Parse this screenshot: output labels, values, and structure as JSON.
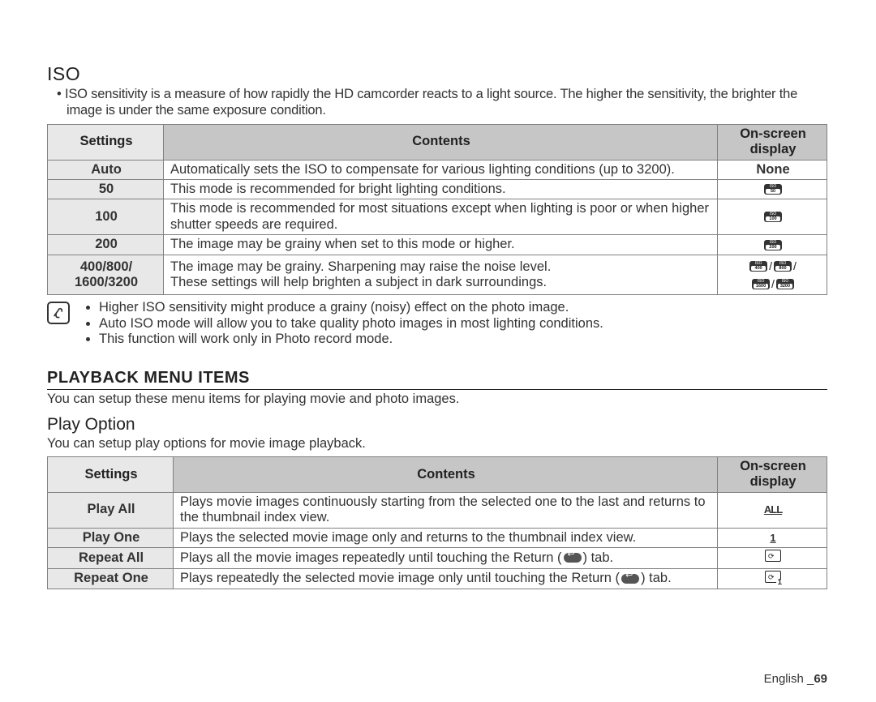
{
  "iso": {
    "title": "ISO",
    "intro": "ISO sensitivity is a measure of how rapidly the HD camcorder reacts to a light source. The higher the sensitivity, the brighter the image is under the same exposure condition.",
    "headers": {
      "settings": "Settings",
      "contents": "Contents",
      "osd_l1": "On-screen",
      "osd_l2": "display"
    },
    "rows": [
      {
        "setting": "Auto",
        "content": "Automatically sets the ISO to compensate for various lighting conditions (up to 3200).",
        "osd_type": "text",
        "osd_text": "None"
      },
      {
        "setting": "50",
        "content": "This mode is recommended for bright lighting conditions.",
        "osd_type": "icon",
        "osd_icons": [
          "50"
        ]
      },
      {
        "setting": "100",
        "content": "This mode is recommended for most situations except when lighting is poor or when higher shutter speeds are required.",
        "osd_type": "icon",
        "osd_icons": [
          "100"
        ]
      },
      {
        "setting": "200",
        "content": "The image may be grainy when set to this mode or higher.",
        "osd_type": "icon",
        "osd_icons": [
          "200"
        ]
      },
      {
        "setting_l1": "400/800/",
        "setting_l2": "1600/3200",
        "content": "The image may be grainy. Sharpening may raise the noise level.\nThese settings will help brighten a subject in dark surroundings.",
        "osd_type": "icon4",
        "osd_icons": [
          "400",
          "800",
          "1600",
          "3200"
        ]
      }
    ],
    "notes": [
      "Higher ISO sensitivity might produce a grainy (noisy) effect on the photo image.",
      "Auto ISO mode will allow you to take quality photo images in most lighting conditions.",
      "This function will work only in Photo record mode."
    ]
  },
  "playback": {
    "title": "PLAYBACK MENU ITEMS",
    "desc": "You can setup these menu items for playing movie and photo images.",
    "playoption": {
      "title": "Play Option",
      "desc": "You can setup play options for movie image playback.",
      "headers": {
        "settings": "Settings",
        "contents": "Contents",
        "osd_l1": "On-screen",
        "osd_l2": "display"
      },
      "rows": [
        {
          "setting": "Play All",
          "pre": "Plays movie images continuously starting from the selected one to the last and returns to the thumbnail index view.",
          "has_return": false,
          "post": "",
          "osd": "all"
        },
        {
          "setting": "Play One",
          "pre": "Plays the selected movie image only and returns to the thumbnail index view.",
          "has_return": false,
          "post": "",
          "osd": "one"
        },
        {
          "setting": "Repeat All",
          "pre": "Plays all the movie images repeatedly until touching the Return (",
          "has_return": true,
          "post": ") tab.",
          "osd": "repall"
        },
        {
          "setting": "Repeat One",
          "pre": "Plays repeatedly the selected movie image only until touching the Return (",
          "has_return": true,
          "post": ") tab.",
          "osd": "repone"
        }
      ]
    }
  },
  "footer": {
    "lang": "English",
    "sep": " _",
    "page": "69"
  },
  "colors": {
    "header_bg": "#c6c6c6",
    "setting_bg": "#e8e8e8",
    "border": "#808080",
    "text": "#333333",
    "icon_bg": "#333333"
  }
}
